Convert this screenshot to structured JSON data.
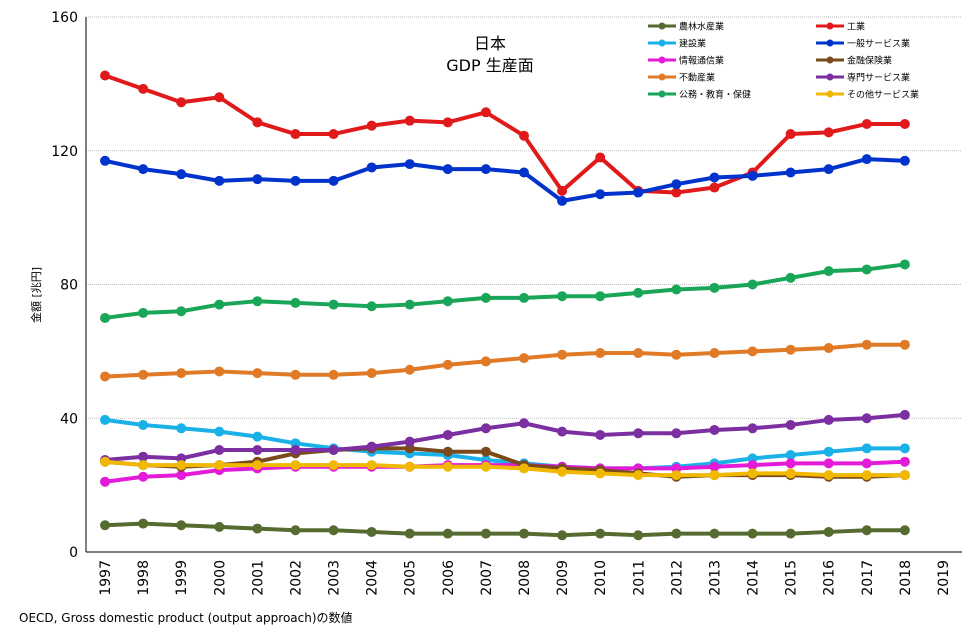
{
  "chart_data": {
    "type": "line",
    "title": "日本",
    "subtitle": "GDP 生産面",
    "xlabel": "",
    "ylabel": "金額 [兆円]",
    "x": [
      1997,
      1998,
      1999,
      2000,
      2001,
      2002,
      2003,
      2004,
      2005,
      2006,
      2007,
      2008,
      2009,
      2010,
      2011,
      2012,
      2013,
      2014,
      2015,
      2016,
      2017,
      2018
    ],
    "x_ticks": [
      1997,
      1998,
      1999,
      2000,
      2001,
      2002,
      2003,
      2004,
      2005,
      2006,
      2007,
      2008,
      2009,
      2010,
      2011,
      2012,
      2013,
      2014,
      2015,
      2016,
      2017,
      2018,
      2019
    ],
    "xlim": [
      1997,
      2019
    ],
    "ylim": [
      0,
      160
    ],
    "y_ticks": [
      0,
      40,
      80,
      120,
      160
    ],
    "grid": true,
    "legend_position": "top-right",
    "series": [
      {
        "name": "農林水産業",
        "color": "#556b2f",
        "values": [
          8,
          8.5,
          8,
          7.5,
          7,
          6.5,
          6.5,
          6,
          5.5,
          5.5,
          5.5,
          5.5,
          5,
          5.5,
          5,
          5.5,
          5.5,
          5.5,
          5.5,
          6,
          6.5,
          6.5
        ]
      },
      {
        "name": "工業",
        "color": "#e0191b",
        "values": [
          142.5,
          138.5,
          134.5,
          136,
          128.5,
          125,
          125,
          127.5,
          129,
          128.5,
          131.5,
          124.5,
          108,
          118,
          108,
          107.5,
          109,
          113.5,
          125,
          125.5,
          128,
          128
        ]
      },
      {
        "name": "建設業",
        "color": "#1ab0e8",
        "values": [
          39.5,
          38,
          37,
          36,
          34.5,
          32.5,
          31,
          30,
          29.5,
          29,
          27.5,
          26.5,
          25.5,
          25,
          25,
          25.5,
          26.5,
          28,
          29,
          30,
          31,
          31
        ]
      },
      {
        "name": "一般サービス業",
        "color": "#0033cc",
        "values": [
          117,
          114.5,
          113,
          111,
          111.5,
          111,
          111,
          115,
          116,
          114.5,
          114.5,
          113.5,
          105,
          107,
          107.5,
          110,
          112,
          112.5,
          113.5,
          114.5,
          117.5,
          117
        ]
      },
      {
        "name": "情報通信業",
        "color": "#e31ad8",
        "values": [
          21,
          22.5,
          23,
          24.5,
          25,
          25.5,
          25.5,
          25.5,
          25.5,
          26,
          26,
          26,
          25.5,
          25,
          25,
          25,
          25.5,
          26,
          26.5,
          26.5,
          26.5,
          27
        ]
      },
      {
        "name": "金融保険業",
        "color": "#7a4a1a",
        "values": [
          27,
          26,
          25.5,
          26,
          27,
          29.5,
          30.5,
          31,
          31,
          30,
          30,
          26,
          25,
          24.5,
          23.5,
          22.5,
          23,
          23,
          23,
          22.5,
          22.5,
          23
        ]
      },
      {
        "name": "不動産業",
        "color": "#e07a26",
        "values": [
          52.5,
          53,
          53.5,
          54,
          53.5,
          53,
          53,
          53.5,
          54.5,
          56,
          57,
          58,
          59,
          59.5,
          59.5,
          59,
          59.5,
          60,
          60.5,
          61,
          62,
          62
        ]
      },
      {
        "name": "専門サービス業",
        "color": "#7b2fa0",
        "values": [
          27.5,
          28.5,
          28,
          30.5,
          30.5,
          30.5,
          30.5,
          31.5,
          33,
          35,
          37,
          38.5,
          36,
          35,
          35.5,
          35.5,
          36.5,
          37,
          38,
          39.5,
          40,
          41
        ]
      },
      {
        "name": "公務・教育・保健",
        "color": "#1aa658",
        "values": [
          70,
          71.5,
          72,
          74,
          75,
          74.5,
          74,
          73.5,
          74,
          75,
          76,
          76,
          76.5,
          76.5,
          77.5,
          78.5,
          79,
          80,
          82,
          84,
          84.5,
          86
        ]
      },
      {
        "name": "その他サービス業",
        "color": "#f0b800",
        "values": [
          27,
          26,
          26,
          26,
          26,
          26,
          26,
          26,
          25.5,
          25.5,
          25.5,
          25,
          24,
          23.5,
          23,
          23,
          23,
          23.5,
          23.5,
          23,
          23,
          23
        ]
      }
    ],
    "source": "OECD, Gross domestic product (output approach)の数値"
  }
}
